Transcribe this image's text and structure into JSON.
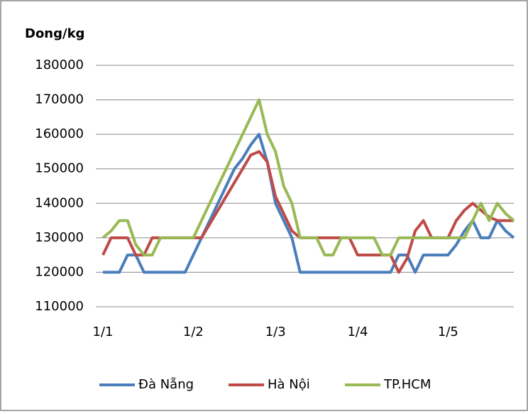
{
  "chart_data": {
    "type": "line",
    "title": "Dong/kg",
    "categories": [
      "1/1",
      null,
      null,
      null,
      null,
      null,
      null,
      null,
      null,
      null,
      null,
      "1/2",
      null,
      null,
      null,
      null,
      null,
      null,
      null,
      null,
      null,
      "1/3",
      null,
      null,
      null,
      null,
      null,
      null,
      null,
      null,
      null,
      "1/4",
      null,
      null,
      null,
      null,
      null,
      null,
      null,
      null,
      null,
      null,
      "1/5",
      null,
      null,
      null,
      null,
      null,
      null,
      null,
      null
    ],
    "series": [
      {
        "name": "Đà Nẵng",
        "color": "#4a7ebb",
        "values": [
          120000,
          120000,
          120000,
          125000,
          125000,
          120000,
          120000,
          120000,
          120000,
          120000,
          120000,
          125000,
          130000,
          135000,
          140000,
          145000,
          150000,
          153000,
          157000,
          160000,
          152000,
          140000,
          135000,
          130000,
          120000,
          120000,
          120000,
          120000,
          120000,
          120000,
          120000,
          120000,
          120000,
          120000,
          120000,
          120000,
          125000,
          125000,
          120000,
          125000,
          125000,
          125000,
          125000,
          128000,
          132000,
          135000,
          130000,
          130000,
          135000,
          132000,
          130000
        ]
      },
      {
        "name": "Hà Nội",
        "color": "#be4b48",
        "values": [
          125000,
          130000,
          130000,
          130000,
          125000,
          125000,
          130000,
          130000,
          130000,
          130000,
          130000,
          130000,
          130000,
          134000,
          138000,
          142000,
          146000,
          150000,
          154000,
          155000,
          152000,
          142000,
          137000,
          132000,
          130000,
          130000,
          130000,
          130000,
          130000,
          130000,
          130000,
          125000,
          125000,
          125000,
          125000,
          125000,
          120000,
          124000,
          132000,
          135000,
          130000,
          130000,
          130000,
          135000,
          138000,
          140000,
          138000,
          136000,
          135000,
          135000,
          135000
        ]
      },
      {
        "name": "TP.HCM",
        "color": "#98b954",
        "values": [
          130000,
          132000,
          135000,
          135000,
          128000,
          125000,
          125000,
          130000,
          130000,
          130000,
          130000,
          130000,
          135000,
          140000,
          145000,
          150000,
          155000,
          160000,
          165000,
          170000,
          160000,
          155000,
          145000,
          140000,
          130000,
          130000,
          130000,
          125000,
          125000,
          130000,
          130000,
          130000,
          130000,
          130000,
          125000,
          125000,
          130000,
          130000,
          130000,
          130000,
          130000,
          130000,
          130000,
          130000,
          130000,
          135000,
          140000,
          135000,
          140000,
          137000,
          135000
        ]
      }
    ],
    "ylim": [
      110000,
      180000
    ],
    "yticks": [
      110000,
      120000,
      130000,
      140000,
      150000,
      160000,
      170000,
      180000
    ],
    "grid": true,
    "legend": "bottom"
  }
}
